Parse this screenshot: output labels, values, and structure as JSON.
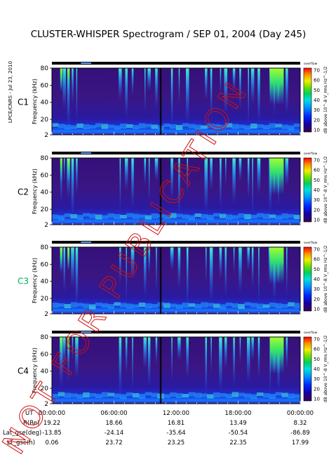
{
  "chart_data": {
    "type": "heatmap",
    "title": "CLUSTER-WHISPER Spectrogram / SEP 01, 2004 (Day 245)",
    "side_label": "LPCE/CNRS - Jul 23, 2010",
    "watermark": "NOT FOR PUBLICATION",
    "ylabel": "Frequency (kHz)",
    "ylim": [
      2,
      80
    ],
    "yticks": [
      "80",
      "60",
      "40",
      "20",
      "2"
    ],
    "colorbar": {
      "label": "dB above 10^-8 V_rms Hz^-1/2",
      "ticks": [
        "70",
        "60",
        "50",
        "40",
        "30",
        "20",
        "10"
      ],
      "range": [
        10,
        70
      ],
      "header": "overflow",
      "colors": [
        "#3a0050",
        "#1400a0",
        "#0028ff",
        "#0090ff",
        "#00e0e0",
        "#00d060",
        "#70e000",
        "#f0f000",
        "#ff9000",
        "#ff0000"
      ]
    },
    "panels": [
      {
        "name": "C1",
        "label_color": "#000000"
      },
      {
        "name": "C2",
        "label_color": "#000000"
      },
      {
        "name": "C3",
        "label_color": "#00b050"
      },
      {
        "name": "C4",
        "label_color": "#000000"
      }
    ],
    "bursts_hours": [
      0.9,
      1.2,
      1.6,
      2.0,
      2.4,
      6.6,
      7.2,
      7.8,
      9.0,
      9.4,
      10.1,
      11.6,
      12.3,
      13.1,
      14.9,
      15.4,
      16.3,
      16.8,
      17.6,
      18.2,
      19.0,
      19.4,
      20.0,
      21.1,
      21.5,
      21.9,
      22.7
    ],
    "green_hours": [
      0.9,
      1.6,
      21.3,
      21.7,
      22.1
    ],
    "datagap_hour": 10.5,
    "x_axis": {
      "row_labels": [
        "UT",
        "R(Re)",
        "Lat_gse(deg)",
        "LT_gse(h)"
      ],
      "columns": [
        {
          "UT": "00:00:00",
          "R(Re)": "19.22",
          "Lat_gse(deg)": "-13.85",
          "LT_gse(h)": "0.06"
        },
        {
          "UT": "06:00:00",
          "R(Re)": "18.66",
          "Lat_gse(deg)": "-24.14",
          "LT_gse(h)": "23.72"
        },
        {
          "UT": "12:00:00",
          "R(Re)": "16.81",
          "Lat_gse(deg)": "-35.64",
          "LT_gse(h)": "23.25"
        },
        {
          "UT": "18:00:00",
          "R(Re)": "13.49",
          "Lat_gse(deg)": "-50.54",
          "LT_gse(h)": "22.35"
        },
        {
          "UT": "00:00:00",
          "R(Re)": "8.32",
          "Lat_gse(deg)": "-86.89",
          "LT_gse(h)": "17.99"
        }
      ],
      "hours": [
        0,
        6,
        12,
        18,
        24
      ]
    }
  }
}
